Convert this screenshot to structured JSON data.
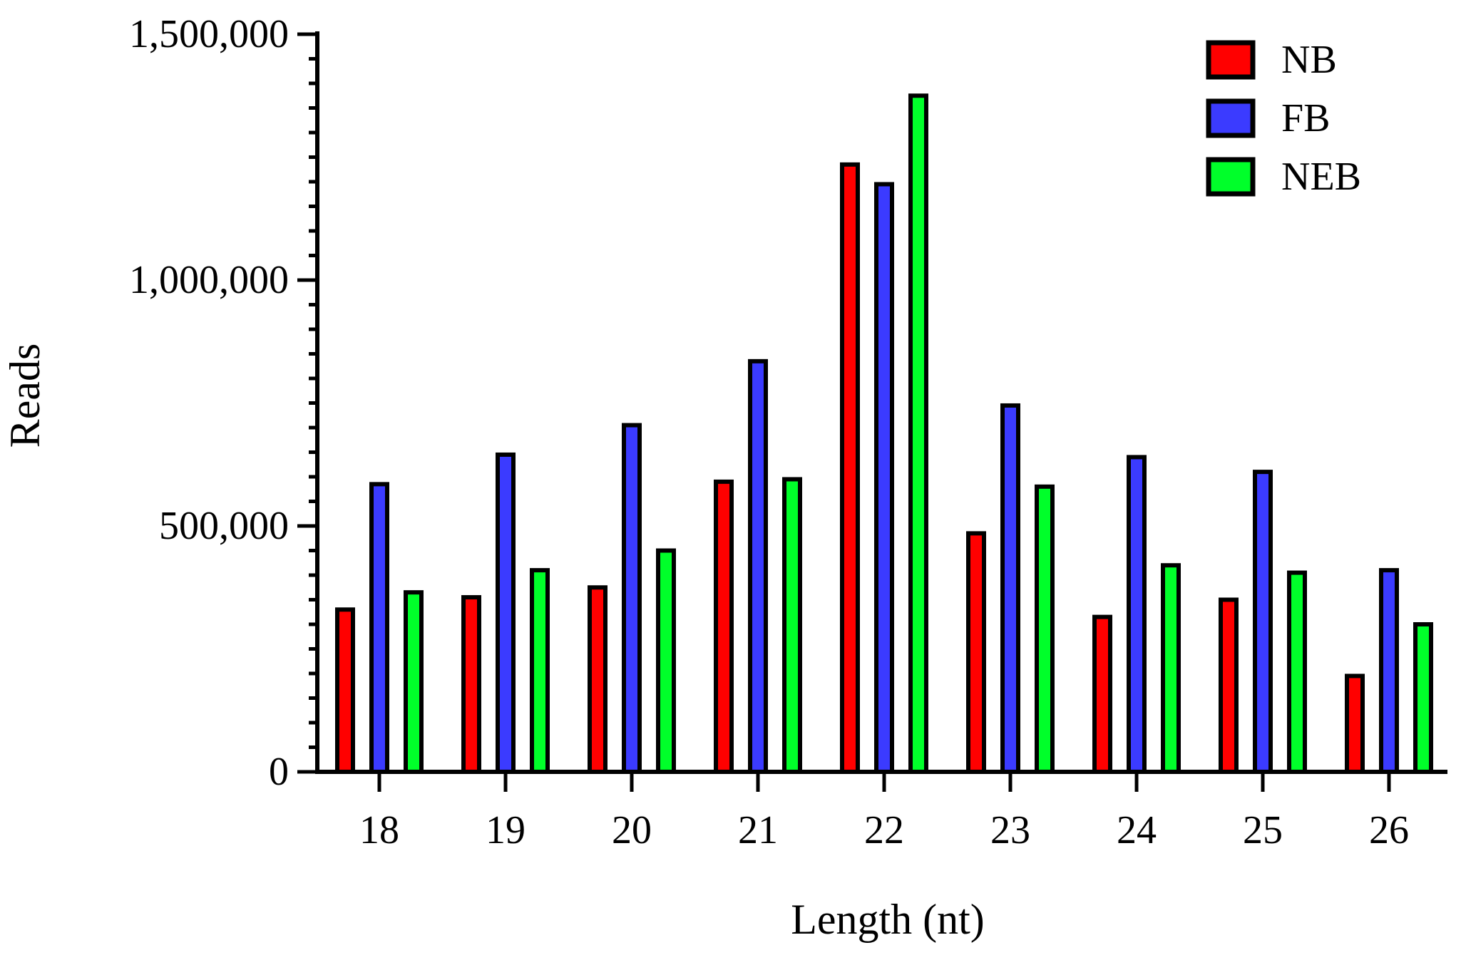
{
  "chart_data": {
    "type": "bar",
    "xlabel": "Length (nt)",
    "ylabel": "Reads",
    "categories": [
      "18",
      "19",
      "20",
      "21",
      "22",
      "23",
      "24",
      "25",
      "26"
    ],
    "yticks": [
      "0",
      "500,000",
      "1,000,000",
      "1,500,000"
    ],
    "ylim": [
      0,
      1500000
    ],
    "legend_position": "top-right",
    "grid": false,
    "series": [
      {
        "name": "NB",
        "color": "#ff0000",
        "values": [
          330000,
          355000,
          375000,
          590000,
          1235000,
          485000,
          315000,
          350000,
          195000
        ]
      },
      {
        "name": "FB",
        "color": "#3b3bff",
        "values": [
          585000,
          645000,
          705000,
          835000,
          1195000,
          745000,
          640000,
          610000,
          410000
        ]
      },
      {
        "name": "NEB",
        "color": "#00ff2a",
        "values": [
          365000,
          410000,
          450000,
          595000,
          1375000,
          580000,
          420000,
          405000,
          300000
        ]
      }
    ]
  }
}
